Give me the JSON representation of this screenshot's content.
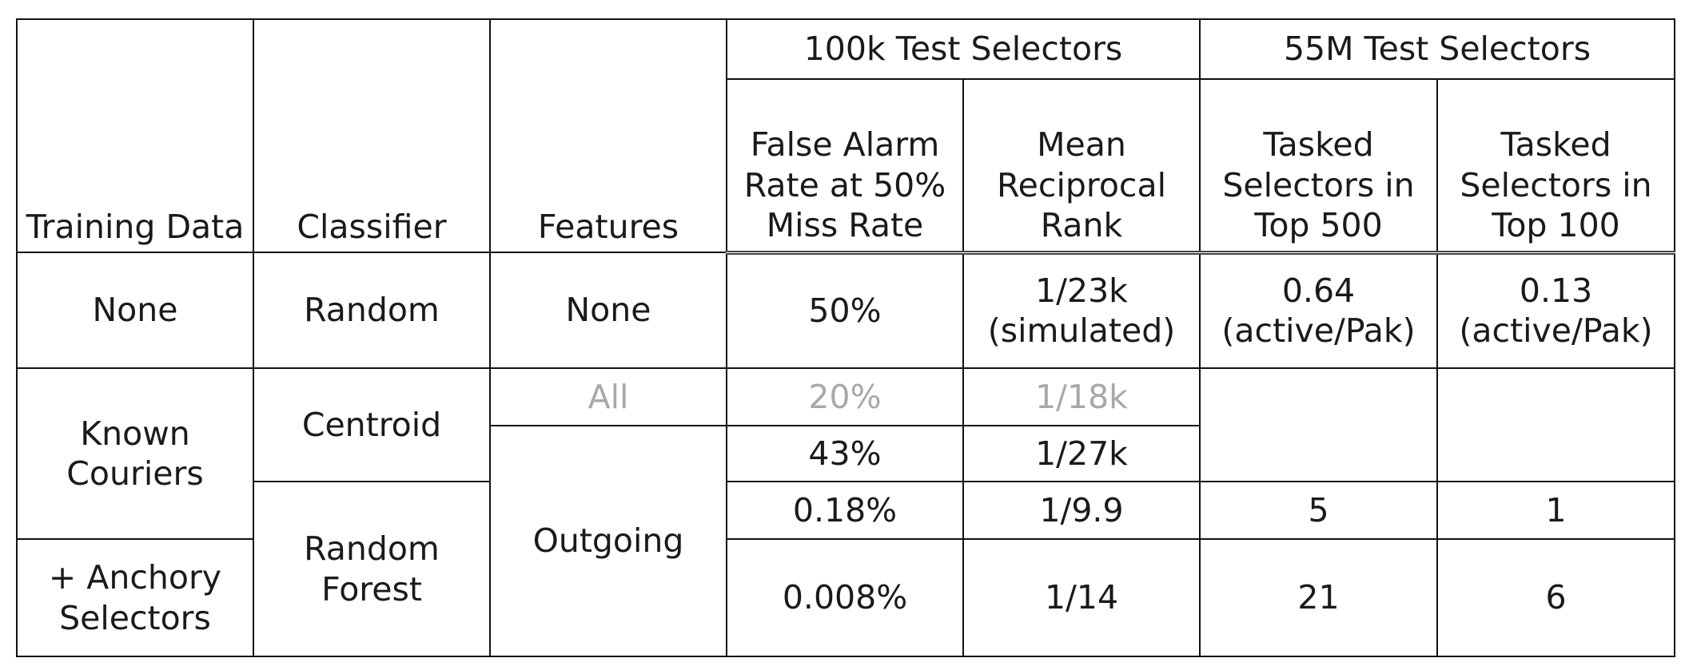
{
  "table": {
    "group_headers": [
      "100k Test Selectors",
      "55M Test Selectors"
    ],
    "columns": [
      "Training Data",
      "Classifier",
      "Features",
      "False Alarm\nRate at 50%\nMiss Rate",
      "Mean\nReciprocal\nRank",
      "Tasked\nSelectors in\nTop 500",
      "Tasked\nSelectors in\nTop 100"
    ],
    "training_data": [
      "None",
      "Known\nCouriers",
      "+ Anchory\nSelectors"
    ],
    "classifiers": [
      "Random",
      "Centroid",
      "Random\nForest"
    ],
    "features": [
      "None",
      "All",
      "Outgoing"
    ],
    "rows": [
      {
        "false_alarm": "50%",
        "mrr": "1/23k\n(simulated)",
        "top500": "0.64\n(active/Pak)",
        "top100": "0.13\n(active/Pak)"
      },
      {
        "false_alarm": "20%",
        "mrr": "1/18k",
        "greyed": true
      },
      {
        "false_alarm": "43%",
        "mrr": "1/27k"
      },
      {
        "false_alarm": "0.18%",
        "mrr": "1/9.9",
        "top500": "5",
        "top100": "1"
      },
      {
        "false_alarm": "0.008%",
        "mrr": "1/14",
        "top500": "21",
        "top100": "6"
      }
    ]
  }
}
